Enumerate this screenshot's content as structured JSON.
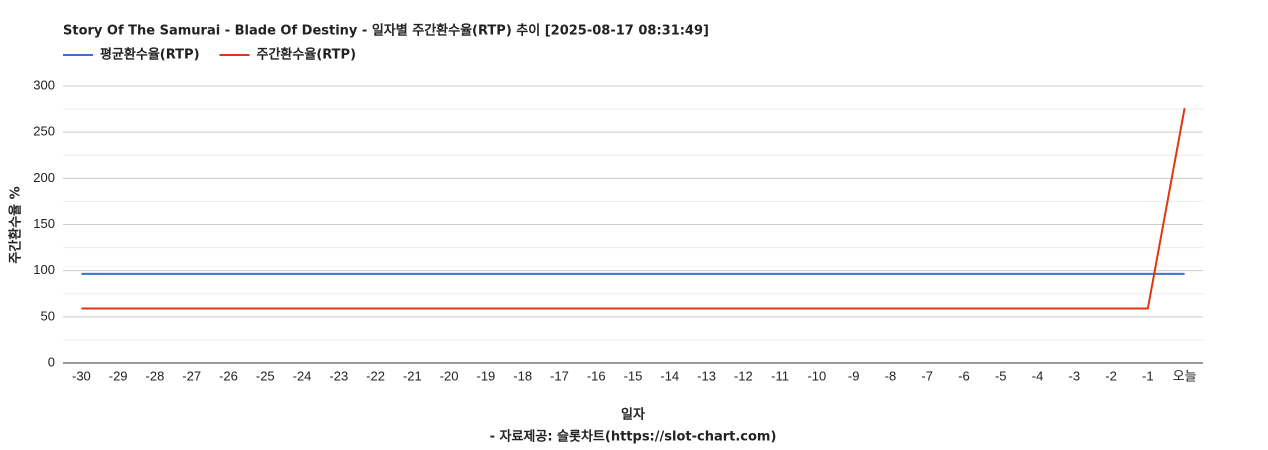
{
  "chart_data": {
    "type": "line",
    "title": "Story Of The Samurai - Blade Of Destiny - 일자별 주간환수율(RTP) 추이 [2025-08-17 08:31:49]",
    "x_label": "일자",
    "y_label": "주간환수율 %",
    "source": "- 자료제공: 슬롯차트(https://slot-chart.com)",
    "categories": [
      "-30",
      "-29",
      "-28",
      "-27",
      "-26",
      "-25",
      "-24",
      "-23",
      "-22",
      "-21",
      "-20",
      "-19",
      "-18",
      "-17",
      "-16",
      "-15",
      "-14",
      "-13",
      "-12",
      "-11",
      "-10",
      "-9",
      "-8",
      "-7",
      "-6",
      "-5",
      "-4",
      "-3",
      "-2",
      "-1",
      "오늘"
    ],
    "series": [
      {
        "name": "평균환수율(RTP)",
        "color": "#3c6fd6",
        "values": [
          96.5,
          96.5,
          96.5,
          96.5,
          96.5,
          96.5,
          96.5,
          96.5,
          96.5,
          96.5,
          96.5,
          96.5,
          96.5,
          96.5,
          96.5,
          96.5,
          96.5,
          96.5,
          96.5,
          96.5,
          96.5,
          96.5,
          96.5,
          96.5,
          96.5,
          96.5,
          96.5,
          96.5,
          96.5,
          96.5,
          96.5
        ]
      },
      {
        "name": "주간환수율(RTP)",
        "color": "#dc3912",
        "values": [
          59,
          59,
          59,
          59,
          59,
          59,
          59,
          59,
          59,
          59,
          59,
          59,
          59,
          59,
          59,
          59,
          59,
          59,
          59,
          59,
          59,
          59,
          59,
          59,
          59,
          59,
          59,
          59,
          59,
          59,
          276
        ]
      }
    ],
    "ylim": [
      0,
      300
    ],
    "yticks": [
      0,
      50,
      100,
      150,
      200,
      250,
      300
    ],
    "minor_yticks": [
      25,
      75,
      125,
      175,
      225,
      275
    ],
    "grid": true
  }
}
